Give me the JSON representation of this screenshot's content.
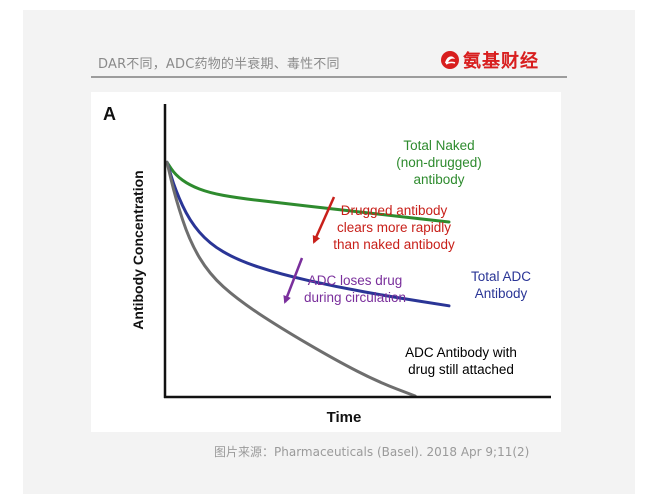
{
  "header": {
    "title": "DAR不同，ADC药物的半衰期、毒性不同",
    "logo_text": "氨基财经"
  },
  "caption": "图片来源：Pharmaceuticals (Basel). 2018 Apr 9;11(2)",
  "colors": {
    "naked": "#2e8b2e",
    "total_adc": "#2a3596",
    "drug_attached": "#6e6e6e",
    "annot_drugged": "#c8201a",
    "annot_loses": "#7a2f9c",
    "logo_red": "#d81e1e"
  },
  "chart_data": {
    "type": "line",
    "panel_letter": "A",
    "xlabel": "Time",
    "ylabel": "Antibody Concentration",
    "xlim": [
      0,
      10
    ],
    "ylim": [
      0,
      10
    ],
    "grid": false,
    "ticks": false,
    "series": [
      {
        "name": "Total Naked (non-drugged) antibody",
        "color": "#2e8b2e",
        "x": [
          0,
          0.3,
          0.8,
          1.5,
          2.5,
          4,
          6,
          8,
          10
        ],
        "y": [
          9.2,
          8.7,
          8.3,
          8.0,
          7.8,
          7.6,
          7.35,
          7.1,
          6.85
        ]
      },
      {
        "name": "Total ADC Antibody",
        "color": "#2a3596",
        "x": [
          0,
          0.3,
          0.8,
          1.5,
          2.5,
          4,
          6,
          8,
          10
        ],
        "y": [
          9.2,
          8.1,
          6.9,
          6.0,
          5.35,
          4.8,
          4.3,
          3.9,
          3.55
        ]
      },
      {
        "name": "ADC Antibody with drug still attached",
        "color": "#6e6e6e",
        "x": [
          0,
          0.3,
          0.8,
          1.5,
          2.5,
          4,
          6,
          7.5,
          8.8
        ],
        "y": [
          9.2,
          7.8,
          6.1,
          4.8,
          3.8,
          2.7,
          1.4,
          0.55,
          0.0
        ]
      }
    ],
    "labels": [
      {
        "series": 0,
        "lines": [
          "Total Naked",
          "(non-drugged)",
          "antibody"
        ],
        "color": "#2e8b2e"
      },
      {
        "series": 1,
        "lines": [
          "Total ADC",
          "Antibody"
        ],
        "color": "#2a3596"
      },
      {
        "series": 2,
        "lines": [
          "ADC Antibody with",
          "drug still attached"
        ],
        "color": "#000000"
      }
    ],
    "annotations": [
      {
        "lines": [
          "Drugged antibody",
          "clears more rapidly",
          "than naked antibody"
        ],
        "color": "#c8201a"
      },
      {
        "lines": [
          "ADC loses drug",
          "during circulation"
        ],
        "color": "#7a2f9c"
      }
    ]
  }
}
